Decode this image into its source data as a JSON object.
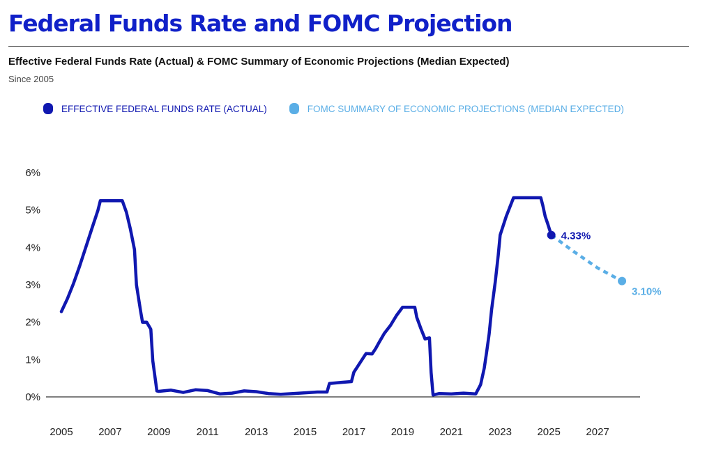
{
  "header": {
    "title": "Federal Funds Rate and FOMC Projection",
    "subtitle": "Effective Federal Funds Rate (Actual) & FOMC Summary of Economic Projections (Median Expected)",
    "since": "Since 2005"
  },
  "colors": {
    "title": "#1020c8",
    "actual": "#1018b0",
    "projection": "#5aaee6",
    "axis": "#333333"
  },
  "chart_data": {
    "type": "line",
    "xlim": [
      2005,
      2029
    ],
    "ylim": [
      0,
      6
    ],
    "y_ticks": [
      {
        "value": 0,
        "label": "0%"
      },
      {
        "value": 1,
        "label": "1%"
      },
      {
        "value": 2,
        "label": "2%"
      },
      {
        "value": 3,
        "label": "3%"
      },
      {
        "value": 4,
        "label": "4%"
      },
      {
        "value": 5,
        "label": "5%"
      },
      {
        "value": 6,
        "label": "6%"
      }
    ],
    "x_ticks": [
      {
        "value": 2005,
        "label": "2005"
      },
      {
        "value": 2007,
        "label": "2007"
      },
      {
        "value": 2009,
        "label": "2009"
      },
      {
        "value": 2011,
        "label": "2011"
      },
      {
        "value": 2013,
        "label": "2013"
      },
      {
        "value": 2015,
        "label": "2015"
      },
      {
        "value": 2017,
        "label": "2017"
      },
      {
        "value": 2019,
        "label": "2019"
      },
      {
        "value": 2021,
        "label": "2021"
      },
      {
        "value": 2023,
        "label": "2023"
      },
      {
        "value": 2025,
        "label": "2025"
      },
      {
        "value": 2027,
        "label": "2027"
      }
    ],
    "grid": false,
    "legend_position": "top-left",
    "series": [
      {
        "name": "EFFECTIVE FEDERAL FUNDS RATE (ACTUAL)",
        "style": "solid",
        "points": [
          [
            2005.0,
            2.28
          ],
          [
            2005.25,
            2.63
          ],
          [
            2005.5,
            3.04
          ],
          [
            2005.75,
            3.5
          ],
          [
            2006.0,
            4.0
          ],
          [
            2006.25,
            4.5
          ],
          [
            2006.5,
            4.99
          ],
          [
            2006.6,
            5.25
          ],
          [
            2007.0,
            5.25
          ],
          [
            2007.5,
            5.25
          ],
          [
            2007.67,
            4.94
          ],
          [
            2007.83,
            4.5
          ],
          [
            2008.0,
            3.94
          ],
          [
            2008.08,
            3.0
          ],
          [
            2008.25,
            2.3
          ],
          [
            2008.33,
            2.0
          ],
          [
            2008.5,
            2.0
          ],
          [
            2008.67,
            1.81
          ],
          [
            2008.75,
            0.97
          ],
          [
            2008.92,
            0.16
          ],
          [
            2009.0,
            0.15
          ],
          [
            2009.5,
            0.18
          ],
          [
            2010.0,
            0.12
          ],
          [
            2010.5,
            0.19
          ],
          [
            2011.0,
            0.17
          ],
          [
            2011.5,
            0.08
          ],
          [
            2012.0,
            0.1
          ],
          [
            2012.5,
            0.16
          ],
          [
            2013.0,
            0.14
          ],
          [
            2013.5,
            0.09
          ],
          [
            2014.0,
            0.07
          ],
          [
            2014.5,
            0.09
          ],
          [
            2015.0,
            0.11
          ],
          [
            2015.5,
            0.13
          ],
          [
            2015.9,
            0.13
          ],
          [
            2016.0,
            0.36
          ],
          [
            2016.5,
            0.39
          ],
          [
            2016.9,
            0.41
          ],
          [
            2017.0,
            0.66
          ],
          [
            2017.25,
            0.91
          ],
          [
            2017.5,
            1.16
          ],
          [
            2017.75,
            1.15
          ],
          [
            2017.9,
            1.3
          ],
          [
            2018.0,
            1.42
          ],
          [
            2018.25,
            1.7
          ],
          [
            2018.5,
            1.91
          ],
          [
            2018.75,
            2.18
          ],
          [
            2019.0,
            2.4
          ],
          [
            2019.5,
            2.4
          ],
          [
            2019.58,
            2.13
          ],
          [
            2019.75,
            1.83
          ],
          [
            2019.92,
            1.55
          ],
          [
            2020.1,
            1.58
          ],
          [
            2020.17,
            0.65
          ],
          [
            2020.25,
            0.05
          ],
          [
            2020.5,
            0.09
          ],
          [
            2021.0,
            0.08
          ],
          [
            2021.5,
            0.1
          ],
          [
            2022.0,
            0.08
          ],
          [
            2022.2,
            0.33
          ],
          [
            2022.35,
            0.77
          ],
          [
            2022.45,
            1.21
          ],
          [
            2022.55,
            1.68
          ],
          [
            2022.65,
            2.33
          ],
          [
            2022.8,
            3.08
          ],
          [
            2022.92,
            3.78
          ],
          [
            2023.0,
            4.33
          ],
          [
            2023.25,
            4.83
          ],
          [
            2023.4,
            5.08
          ],
          [
            2023.55,
            5.33
          ],
          [
            2024.0,
            5.33
          ],
          [
            2024.67,
            5.33
          ],
          [
            2024.75,
            5.13
          ],
          [
            2024.85,
            4.83
          ],
          [
            2024.95,
            4.64
          ],
          [
            2025.1,
            4.33
          ]
        ]
      },
      {
        "name": "FOMC SUMMARY OF ECONOMIC PROJECTIONS (MEDIAN EXPECTED)",
        "style": "dashed",
        "points": [
          [
            2025.1,
            4.33
          ],
          [
            2026.0,
            3.9
          ],
          [
            2027.0,
            3.45
          ],
          [
            2028.0,
            3.1
          ]
        ]
      }
    ],
    "annotations": [
      {
        "x": 2025.1,
        "y": 4.33,
        "label": "4.33%",
        "series": 0
      },
      {
        "x": 2028.0,
        "y": 3.1,
        "label": "3.10%",
        "series": 1
      }
    ]
  }
}
